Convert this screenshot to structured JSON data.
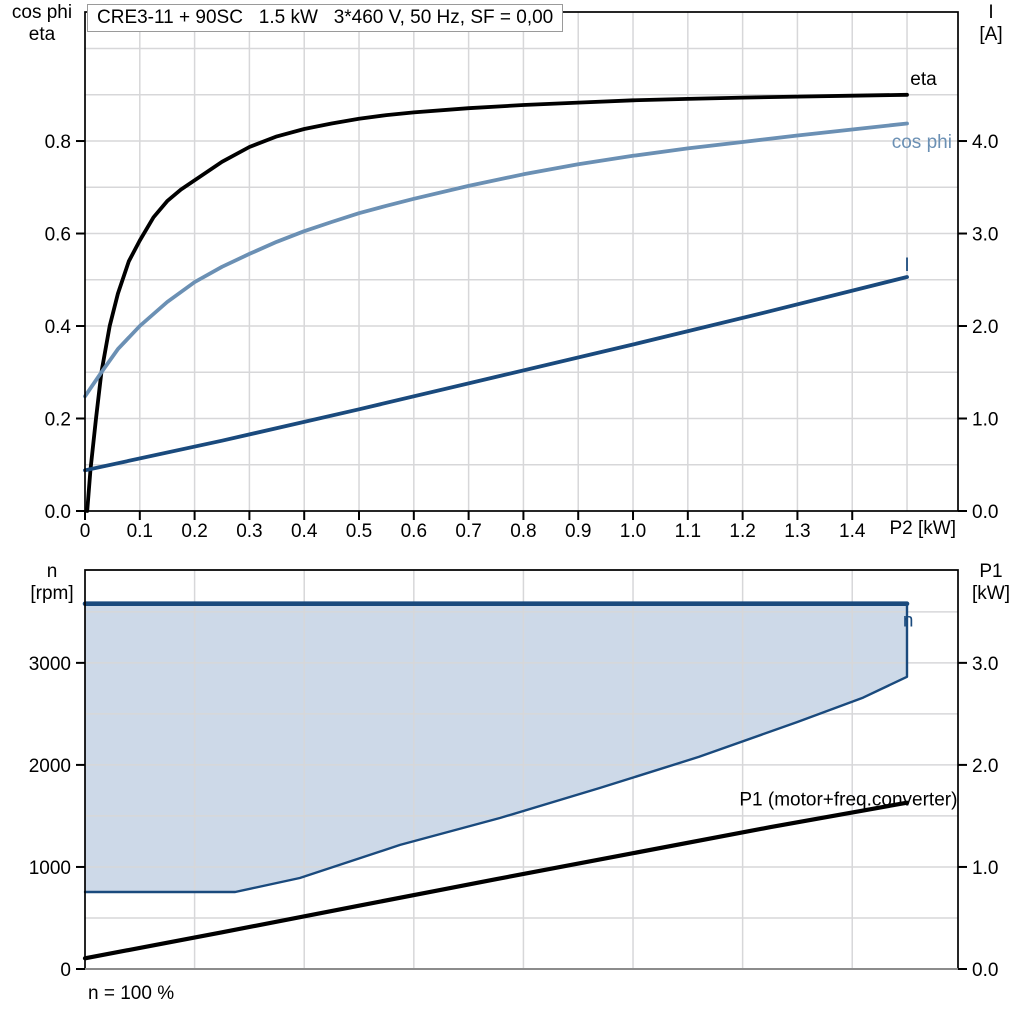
{
  "title_box": "CRE3-11 + 90SC   1.5 kW   3*460 V, 50 Hz, SF = 0,00",
  "labels": {
    "top_left_axis": [
      "cos phi",
      "eta"
    ],
    "top_right_axis": [
      "I",
      "[A]"
    ],
    "bottom_left_axis": [
      "n",
      "[rpm]"
    ],
    "bottom_right_axis": [
      "P1",
      "[kW]"
    ],
    "x_axis_unit": "P2 [kW]",
    "bottom_note": "n = 100 %"
  },
  "colors": {
    "eta": "#000000",
    "cos_phi": "#6b90b4",
    "current": "#1a4a7d",
    "envelope_fill": "#cdd9e8",
    "envelope_border": "#1a4a7d",
    "p1": "#000000",
    "grid": "#d7d7d9",
    "axis": "#000000",
    "x_axis_bottom": "#8c8c8c",
    "text": "#000000"
  },
  "chart_data": [
    {
      "type": "line",
      "name": "motor-performance-curves",
      "title": "CRE3-11 + 90SC   1.5 kW   3*460 V, 50 Hz, SF = 0,00",
      "x": {
        "label": "P2 [kW]",
        "min": 0,
        "max": 1.593,
        "tick_labels": [
          "0",
          "0.1",
          "0.2",
          "0.3",
          "0.4",
          "0.5",
          "0.6",
          "0.7",
          "0.8",
          "0.9",
          "1.0",
          "1.1",
          "1.2",
          "1.3",
          "1.4"
        ]
      },
      "y_left": {
        "label": "cos phi / eta",
        "min": 0,
        "max": 1.079,
        "tick_labels": [
          "0.0",
          "0.2",
          "0.4",
          "0.6",
          "0.8"
        ]
      },
      "y_right": {
        "label": "I [A]",
        "min": 0,
        "max": 5.395,
        "tick_labels": [
          "0.0",
          "1.0",
          "2.0",
          "3.0",
          "4.0"
        ]
      },
      "grid_x_step": 0.1,
      "grid_y_step": 0.1,
      "series": [
        {
          "name": "eta",
          "label": "eta",
          "axis": "left",
          "color_key": "eta",
          "label_pos": [
            1.53,
            0.921
          ],
          "label_anchor": "middle",
          "points": [
            [
              0.004,
              0
            ],
            [
              0.01,
              0.09
            ],
            [
              0.02,
              0.2
            ],
            [
              0.03,
              0.3
            ],
            [
              0.045,
              0.4
            ],
            [
              0.06,
              0.47
            ],
            [
              0.08,
              0.54
            ],
            [
              0.1,
              0.585
            ],
            [
              0.125,
              0.635
            ],
            [
              0.15,
              0.67
            ],
            [
              0.175,
              0.695
            ],
            [
              0.2,
              0.715
            ],
            [
              0.25,
              0.755
            ],
            [
              0.3,
              0.787
            ],
            [
              0.35,
              0.81
            ],
            [
              0.4,
              0.826
            ],
            [
              0.45,
              0.838
            ],
            [
              0.5,
              0.848
            ],
            [
              0.55,
              0.856
            ],
            [
              0.6,
              0.862
            ],
            [
              0.7,
              0.871
            ],
            [
              0.8,
              0.878
            ],
            [
              0.9,
              0.883
            ],
            [
              1.0,
              0.888
            ],
            [
              1.1,
              0.891
            ],
            [
              1.2,
              0.894
            ],
            [
              1.3,
              0.896
            ],
            [
              1.4,
              0.898
            ],
            [
              1.5,
              0.9
            ]
          ]
        },
        {
          "name": "cos phi",
          "label": "cos phi",
          "axis": "left",
          "color_key": "cos_phi",
          "label_pos": [
            1.527,
            0.785
          ],
          "label_anchor": "middle",
          "points": [
            [
              0,
              0.248
            ],
            [
              0.03,
              0.3
            ],
            [
              0.06,
              0.35
            ],
            [
              0.1,
              0.4
            ],
            [
              0.15,
              0.452
            ],
            [
              0.2,
              0.495
            ],
            [
              0.25,
              0.528
            ],
            [
              0.3,
              0.556
            ],
            [
              0.35,
              0.582
            ],
            [
              0.4,
              0.605
            ],
            [
              0.45,
              0.625
            ],
            [
              0.5,
              0.644
            ],
            [
              0.55,
              0.66
            ],
            [
              0.6,
              0.675
            ],
            [
              0.7,
              0.703
            ],
            [
              0.8,
              0.728
            ],
            [
              0.9,
              0.75
            ],
            [
              1.0,
              0.768
            ],
            [
              1.1,
              0.784
            ],
            [
              1.2,
              0.798
            ],
            [
              1.3,
              0.812
            ],
            [
              1.4,
              0.825
            ],
            [
              1.5,
              0.838
            ]
          ]
        },
        {
          "name": "I",
          "label": "I",
          "axis": "right",
          "color_key": "current",
          "label_pos": [
            1.5,
            2.595
          ],
          "label_anchor": "middle",
          "points": [
            [
              0,
              0.44
            ],
            [
              0.25,
              0.76
            ],
            [
              0.5,
              1.1
            ],
            [
              0.75,
              1.45
            ],
            [
              1.0,
              1.8
            ],
            [
              1.25,
              2.16
            ],
            [
              1.5,
              2.53
            ]
          ]
        }
      ]
    },
    {
      "type": "line+area",
      "name": "speed-and-input-power",
      "x": {
        "label": "P2 [kW]",
        "min": 0,
        "max": 1.593,
        "tick_labels": []
      },
      "y_left": {
        "label": "n [rpm]",
        "min": 0,
        "max": 3910,
        "tick_labels": [
          "0",
          "1000",
          "2000",
          "3000"
        ]
      },
      "y_right": {
        "label": "P1 [kW]",
        "min": 0,
        "max": 3.91,
        "tick_labels": [
          "0.0",
          "1.0",
          "2.0",
          "3.0"
        ]
      },
      "grid_x_step": 0.2,
      "grid_y_step": 500,
      "envelope": {
        "name": "n",
        "label": "n",
        "label_pos": [
          1.502,
          3355
        ],
        "max_speed_rpm": 3580,
        "right_edge_x": 1.5,
        "right_edge_bottom_rpm": 2863,
        "lower_boundary": [
          [
            0,
            755
          ],
          [
            0.274,
            755
          ],
          [
            0.392,
            892
          ],
          [
            0.575,
            1216
          ],
          [
            0.757,
            1480
          ],
          [
            0.94,
            1775
          ],
          [
            1.12,
            2078
          ],
          [
            1.3,
            2420
          ],
          [
            1.42,
            2660
          ],
          [
            1.5,
            2863
          ]
        ]
      },
      "series": [
        {
          "name": "P1 (motor+freq.converter)",
          "label": "P1 (motor+freq.converter)",
          "axis": "right",
          "color_key": "p1",
          "label_pos": [
            1.592,
            1.6
          ],
          "label_anchor": "end",
          "points": [
            [
              0,
              0.105
            ],
            [
              0.25,
              0.36
            ],
            [
              0.5,
              0.62
            ],
            [
              0.75,
              0.88
            ],
            [
              1.0,
              1.135
            ],
            [
              1.25,
              1.39
            ],
            [
              1.5,
              1.63
            ]
          ]
        }
      ]
    }
  ]
}
